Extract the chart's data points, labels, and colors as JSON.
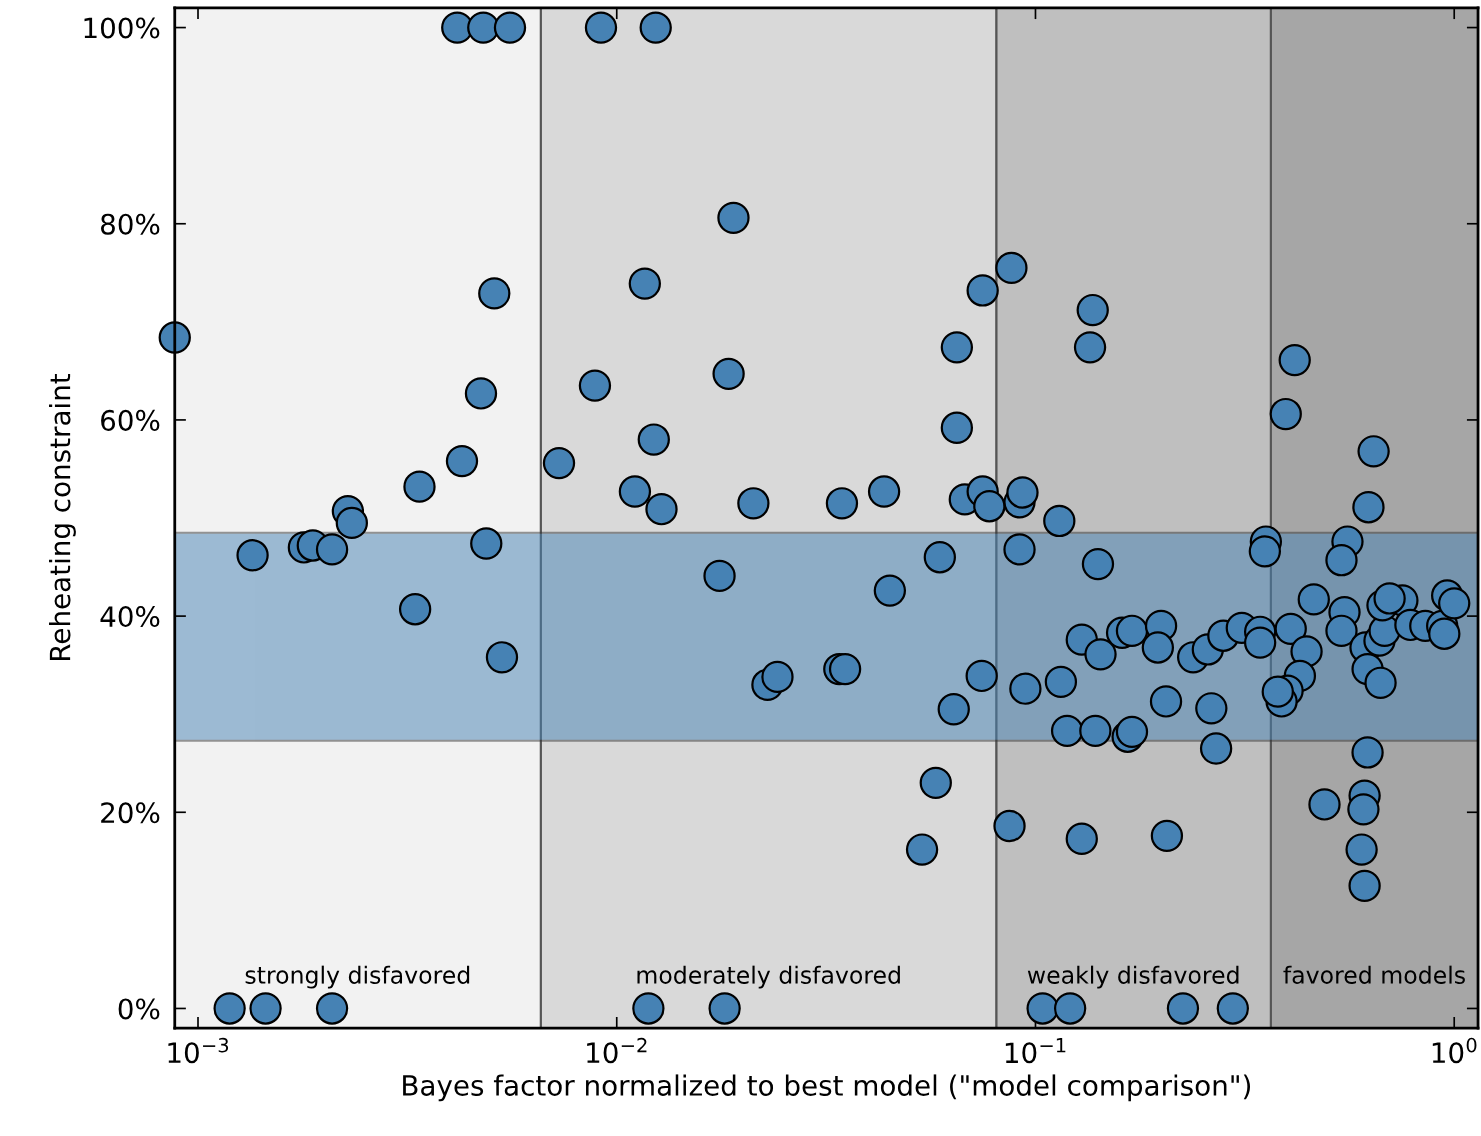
{
  "chart_data": {
    "type": "scatter",
    "xlabel": "Bayes factor normalized to best model (\"model comparison\")",
    "ylabel": "Reheating constraint",
    "log": "x",
    "grid": false,
    "legend": false,
    "marker": "circle",
    "xlim": [
      0.00088,
      1.14
    ],
    "ylim": [
      -2,
      102
    ],
    "xticks": [
      {
        "value": 0.001,
        "label": "10$^{−3}$"
      },
      {
        "value": 0.01,
        "label": "10$^{−2}$"
      },
      {
        "value": 0.1,
        "label": "10$^{−1}$"
      },
      {
        "value": 1,
        "label": "10$^{0}$"
      }
    ],
    "yticks": [
      {
        "value": 0,
        "label": "0%"
      },
      {
        "value": 20,
        "label": "20%"
      },
      {
        "value": 40,
        "label": "40%"
      },
      {
        "value": 60,
        "label": "60%"
      },
      {
        "value": 80,
        "label": "80%"
      },
      {
        "value": 100,
        "label": "100%"
      }
    ],
    "bands": [
      {
        "axis": "x",
        "from": 0.00088,
        "to": 0.00659,
        "label": "strongly disfavored",
        "color": "#f2f2f2"
      },
      {
        "axis": "x",
        "from": 0.00659,
        "to": 0.0807,
        "label": "moderately disfavored",
        "color": "#d9d9d9"
      },
      {
        "axis": "x",
        "from": 0.0807,
        "to": 0.365,
        "label": "weakly disfavored",
        "color": "#bfbfbf"
      },
      {
        "axis": "x",
        "from": 0.365,
        "to": 1.14,
        "label": "favored models",
        "color": "#a6a6a6"
      },
      {
        "axis": "y",
        "from": 27.3,
        "to": 48.5,
        "color": "#4682b4"
      }
    ],
    "series": [
      {
        "color": "#4682b4",
        "x": [
          0.00088,
          0.00119,
          0.00145,
          0.00209,
          0.00135,
          0.00179,
          0.00188,
          0.00209,
          0.00228,
          0.00233,
          0.0033,
          0.00338,
          0.00416,
          0.0048,
          0.00556,
          0.00427,
          0.00474,
          0.0051,
          0.00488,
          0.00532,
          0.00728,
          0.00887,
          0.00917,
          0.01239,
          0.01167,
          0.01105,
          0.01226,
          0.01279,
          0.0119,
          0.0181,
          0.019,
          0.0185,
          0.0176,
          0.0212,
          0.0229,
          0.0242,
          0.0345,
          0.034,
          0.0351,
          0.0435,
          0.0449,
          0.0536,
          0.0578,
          0.0591,
          0.0638,
          0.0649,
          0.0649,
          0.0678,
          0.0748,
          0.0744,
          0.0748,
          0.0776,
          0.0876,
          0.0867,
          0.0916,
          0.0916,
          0.0931,
          0.0946,
          0.104,
          0.121,
          0.114,
          0.115,
          0.137,
          0.135,
          0.141,
          0.129,
          0.143,
          0.119,
          0.139,
          0.129,
          0.161,
          0.17,
          0.1995,
          0.196,
          0.238,
          0.258,
          0.281,
          0.311,
          0.344,
          0.344,
          0.355,
          0.353,
          0.166,
          0.17,
          0.205,
          0.263,
          0.27,
          0.206,
          0.407,
          0.444,
          0.428,
          0.4,
          0.387,
          0.379,
          0.462,
          0.556,
          0.538,
          0.547,
          0.538,
          0.614,
          0.621,
          0.667,
          0.663,
          0.682,
          0.674,
          0.752,
          0.701,
          0.786,
          0.853,
          0.936,
          0.947,
          0.962,
          1.0,
          0.621,
          0.49,
          0.611,
          0.607,
          0.601,
          0.611,
          0.416,
          0.396,
          0.642,
          0.624,
          0.225,
          0.296
        ],
        "values": [
          68.4,
          0,
          0,
          0,
          46.2,
          47.0,
          47.2,
          46.8,
          50.7,
          49.5,
          40.7,
          53.2,
          100,
          100,
          100,
          55.8,
          62.7,
          72.9,
          47.4,
          35.8,
          55.6,
          63.5,
          100,
          100,
          73.9,
          52.7,
          58.0,
          50.9,
          0,
          0,
          80.6,
          64.7,
          44.1,
          51.5,
          33.0,
          33.8,
          51.5,
          34.6,
          34.6,
          52.7,
          42.6,
          16.2,
          23.0,
          46.0,
          30.5,
          67.4,
          59.2,
          51.9,
          73.2,
          33.9,
          52.7,
          51.2,
          75.5,
          18.6,
          46.8,
          51.6,
          52.6,
          32.6,
          0,
          0,
          49.7,
          33.3,
          71.2,
          67.4,
          45.3,
          37.6,
          36.1,
          28.3,
          28.3,
          17.3,
          38.3,
          38.5,
          39.0,
          36.8,
          35.8,
          36.6,
          38.0,
          38.8,
          38.4,
          37.3,
          47.6,
          46.6,
          27.7,
          28.2,
          31.3,
          30.6,
          26.5,
          17.6,
          38.7,
          36.4,
          33.9,
          32.4,
          31.3,
          32.3,
          41.7,
          47.6,
          45.7,
          40.4,
          38.5,
          36.8,
          34.6,
          33.2,
          37.5,
          38.5,
          41.1,
          41.6,
          41.8,
          39.1,
          39.0,
          39.0,
          38.2,
          42.1,
          41.3,
          26.1,
          20.8,
          21.7,
          20.3,
          16.2,
          12.5,
          66.1,
          60.6,
          56.8,
          51.1,
          0,
          0
        ]
      }
    ]
  }
}
